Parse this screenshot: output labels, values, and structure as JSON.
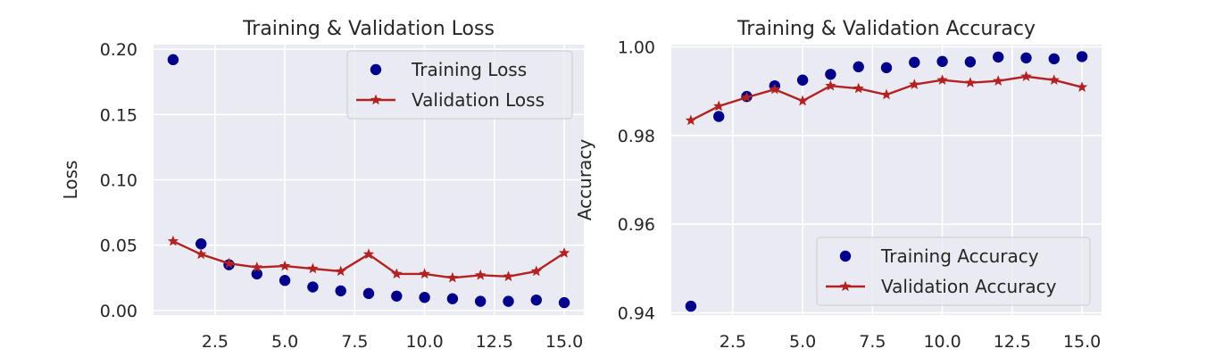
{
  "chart_data": [
    {
      "type": "line",
      "title": "Training & Validation Loss",
      "xlabel": "",
      "ylabel": "Loss",
      "xlim": [
        0.3,
        15.7
      ],
      "ylim": [
        -0.0035,
        0.2035
      ],
      "xticks": [
        2.5,
        5.0,
        7.5,
        10.0,
        12.5,
        15.0
      ],
      "xtick_labels": [
        "2.5",
        "5.0",
        "7.5",
        "10.0",
        "12.5",
        "15.0"
      ],
      "yticks": [
        0.0,
        0.05,
        0.1,
        0.15,
        0.2
      ],
      "ytick_labels": [
        "0.00",
        "0.05",
        "0.10",
        "0.15",
        "0.20"
      ],
      "grid": true,
      "legend_position": "top-right",
      "x": [
        1,
        2,
        3,
        4,
        5,
        6,
        7,
        8,
        9,
        10,
        11,
        12,
        13,
        14,
        15
      ],
      "series": [
        {
          "name": "Training Loss",
          "style": "scatter",
          "color": "#00008B",
          "values": [
            0.192,
            0.051,
            0.035,
            0.028,
            0.023,
            0.018,
            0.015,
            0.013,
            0.011,
            0.01,
            0.009,
            0.007,
            0.007,
            0.008,
            0.006
          ]
        },
        {
          "name": "Validation Loss",
          "style": "line-star",
          "color": "#B22222",
          "values": [
            0.053,
            0.043,
            0.036,
            0.033,
            0.034,
            0.032,
            0.03,
            0.043,
            0.028,
            0.028,
            0.025,
            0.027,
            0.026,
            0.03,
            0.044
          ]
        }
      ]
    },
    {
      "type": "line",
      "title": "Training & Validation Accuracy",
      "xlabel": "",
      "ylabel": "Accuracy",
      "xlim": [
        0.3,
        15.7
      ],
      "ylim": [
        0.9395,
        1.0005
      ],
      "xticks": [
        2.5,
        5.0,
        7.5,
        10.0,
        12.5,
        15.0
      ],
      "xtick_labels": [
        "2.5",
        "5.0",
        "7.5",
        "10.0",
        "12.5",
        "15.0"
      ],
      "yticks": [
        0.94,
        0.96,
        0.98,
        1.0
      ],
      "ytick_labels": [
        "0.94",
        "0.96",
        "0.98",
        "1.00"
      ],
      "grid": true,
      "legend_position": "lower-right",
      "x": [
        1,
        2,
        3,
        4,
        5,
        6,
        7,
        8,
        9,
        10,
        11,
        12,
        13,
        14,
        15
      ],
      "series": [
        {
          "name": "Training Accuracy",
          "style": "scatter",
          "color": "#00008B",
          "values": [
            0.9415,
            0.9843,
            0.9888,
            0.9912,
            0.9925,
            0.9938,
            0.9955,
            0.9953,
            0.9965,
            0.9967,
            0.9966,
            0.9977,
            0.9975,
            0.9973,
            0.9978
          ]
        },
        {
          "name": "Validation Accuracy",
          "style": "line-star",
          "color": "#B22222",
          "values": [
            0.9834,
            0.9866,
            0.9886,
            0.9904,
            0.9878,
            0.9912,
            0.9906,
            0.9892,
            0.9915,
            0.9925,
            0.9919,
            0.9923,
            0.9933,
            0.9925,
            0.9909
          ]
        }
      ]
    }
  ]
}
